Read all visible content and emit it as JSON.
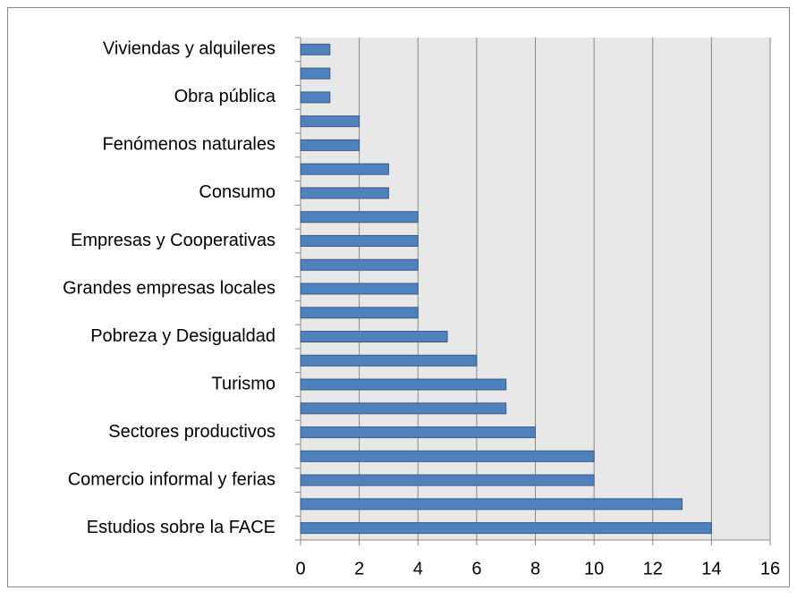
{
  "chart_data": {
    "type": "barh",
    "categories": [
      "Estudios sobre la FACE",
      null,
      "Comercio informal y ferias",
      null,
      "Sectores productivos",
      null,
      "Turismo",
      null,
      "Pobreza y Desigualdad",
      null,
      "Grandes empresas locales",
      null,
      "Empresas y Cooperativas",
      null,
      "Consumo",
      null,
      "Fenómenos naturales",
      null,
      "Obra pública",
      null,
      "Viviendas y alquileres"
    ],
    "values": [
      14,
      13,
      10,
      10,
      8,
      7,
      7,
      6,
      5,
      4,
      4,
      4,
      4,
      4,
      3,
      3,
      2,
      2,
      1,
      1,
      1
    ],
    "color": "#4f81bd",
    "xlim": [
      0,
      16
    ],
    "xticks": [
      0,
      2,
      4,
      6,
      8,
      10,
      12,
      14,
      16
    ],
    "grid": true
  }
}
